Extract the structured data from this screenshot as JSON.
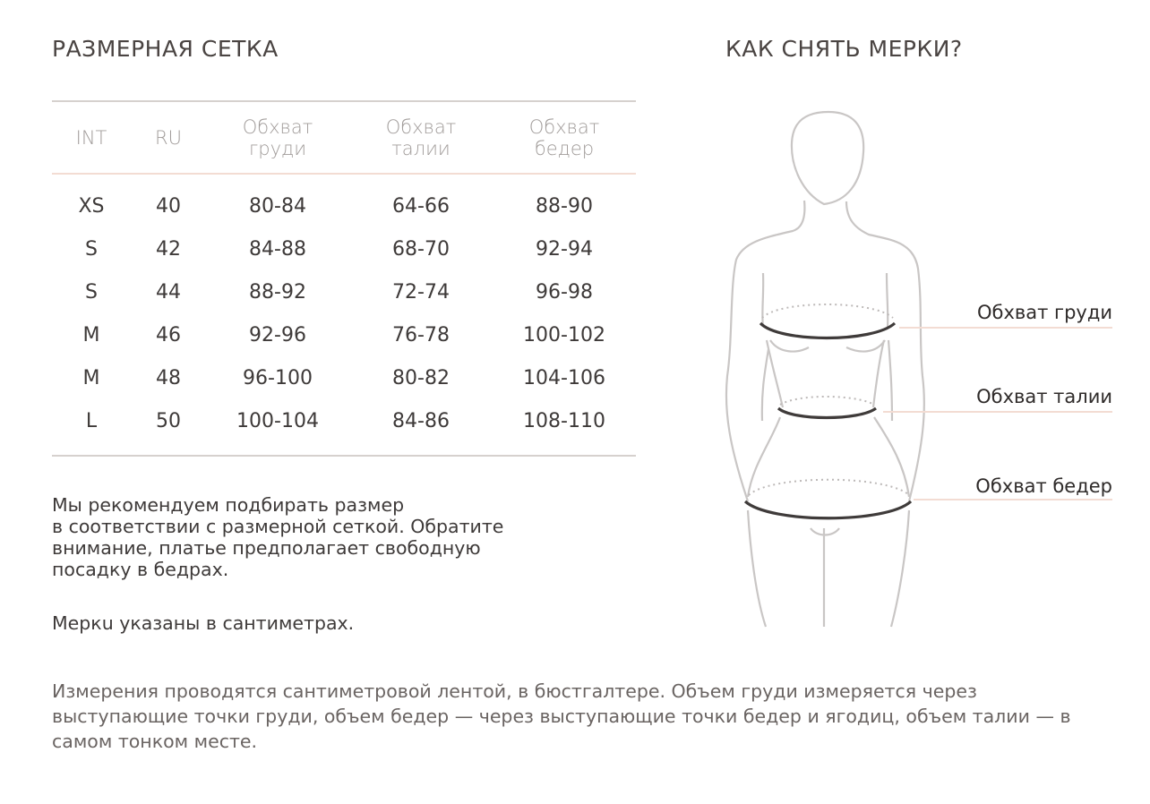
{
  "size_chart": {
    "title": "РАЗМЕРНАЯ СЕТКА",
    "headers": [
      {
        "line1": "INT",
        "line2": ""
      },
      {
        "line1": "RU",
        "line2": ""
      },
      {
        "line1": "Обхват",
        "line2": "груди"
      },
      {
        "line1": "Обхват",
        "line2": "талии"
      },
      {
        "line1": "Обхват",
        "line2": "бедер"
      }
    ],
    "rows": [
      [
        "XS",
        "40",
        "80-84",
        "64-66",
        "88-90"
      ],
      [
        "S",
        "42",
        "84-88",
        "68-70",
        "92-94"
      ],
      [
        "S",
        "44",
        "88-92",
        "72-74",
        "96-98"
      ],
      [
        "M",
        "46",
        "92-96",
        "76-78",
        "100-102"
      ],
      [
        "M",
        "48",
        "96-100",
        "80-82",
        "104-106"
      ],
      [
        "L",
        "50",
        "100-104",
        "84-86",
        "108-110"
      ]
    ],
    "recommendation": [
      "Мы рекомендуем подбирать размер",
      "в соответствии с размерной сеткой. Обратите",
      "внимание, платье предполагает свободную",
      "посадку в бедрах."
    ],
    "units_note": "Меркu указаны в сантиметрах."
  },
  "measure": {
    "title": "КАК СНЯТЬ МЕРКИ?",
    "labels": {
      "chest": "Обхват груди",
      "waist": "Обхват талии",
      "hips": "Обхват бедер"
    }
  },
  "footnote": "Измерения проводятся сантиметровой лентой, в бюстгалтере. Объем груди измеряется через выступающие точки груди, объем бедер — через выступающие точки бедер и ягодиц, объем талии — в самом тонком месте.",
  "colors": {
    "rule_gray": "#d6d1ce",
    "rule_pink": "#f3dcd3",
    "text": "#3e3a39"
  }
}
